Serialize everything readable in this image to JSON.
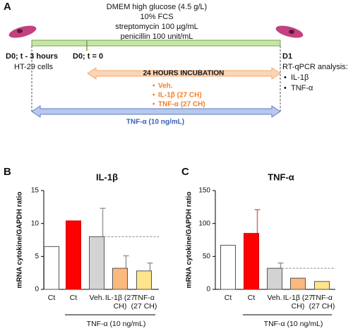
{
  "diagram": {
    "panel": "A",
    "medium": [
      "DMEM high glucose (4.5 g/L)",
      "10% FCS",
      "streptomycin 100 µg/mL",
      "penicillin 100 unit/mL"
    ],
    "start": "D0; t - 3 hours",
    "cells": "HT-29 cells",
    "t0": "D0; t = 0",
    "incubation": "24 HOURS INCUBATION",
    "treatments": [
      "Veh.",
      "IL-1β (27 CH)",
      "TNF-α (27 CH)"
    ],
    "stimulus": "TNF-α (10 ng/mL)",
    "end": "D1",
    "analysis": "RT-qPCR analysis:",
    "targets": [
      "IL-1β",
      "TNF-α"
    ]
  },
  "chart_data": [
    {
      "type": "bar",
      "panel": "B",
      "title": "IL-1β",
      "y_label": "mRNA cytokine/GAPDH ratio",
      "categories": [
        "Ct",
        "Ct",
        "Veh.",
        "IL-1β (27 CH)",
        "TNF-α (27 CH)"
      ],
      "values": [
        6.5,
        10.4,
        8.0,
        3.2,
        2.8
      ],
      "errors": [
        null,
        null,
        4.3,
        1.9,
        1.2
      ],
      "colors": [
        "#ffffff",
        "#ff0000",
        "#d3d3d3",
        "#fbb97e",
        "#ffe48a"
      ],
      "group_label": "TNF-α (10 ng/mL)",
      "ylim": [
        0,
        15
      ],
      "yticks": [
        0,
        5,
        10,
        15
      ]
    },
    {
      "type": "bar",
      "panel": "C",
      "title": "TNF-α",
      "y_label": "mRNA cytokine/GAPDH ratio",
      "categories": [
        "Ct",
        "Ct",
        "Veh.",
        "IL-1β (27 CH)",
        "TNF-α (27 CH)"
      ],
      "values": [
        67,
        85,
        32,
        17,
        12
      ],
      "errors": [
        null,
        36,
        8,
        null,
        null
      ],
      "colors": [
        "#ffffff",
        "#ff0000",
        "#d3d3d3",
        "#fbb97e",
        "#ffe48a"
      ],
      "group_label": "TNF-α (10 ng/mL)",
      "ylim": [
        0,
        150
      ],
      "yticks": [
        0,
        50,
        100,
        150
      ]
    }
  ]
}
